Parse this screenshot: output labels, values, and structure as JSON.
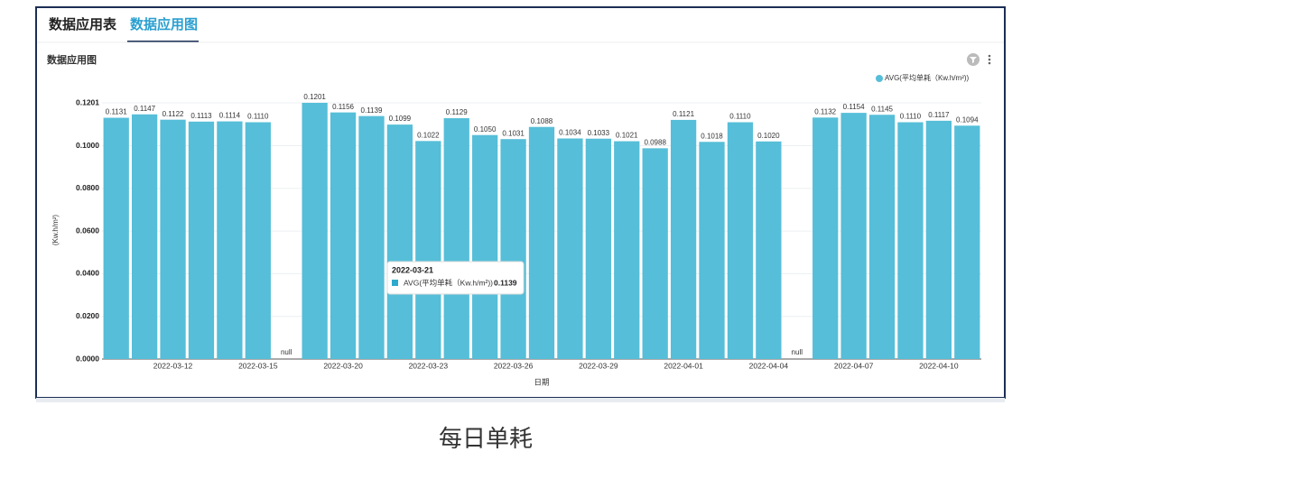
{
  "tabs": [
    "数据应用表",
    "数据应用图"
  ],
  "panel_title": "数据应用图",
  "caption": "每日单耗",
  "tooltip": {
    "title": "2022-03-21",
    "series": "AVG(平均单耗（Kw.h/m²))",
    "value": 0.1139
  },
  "chart_data": {
    "type": "bar",
    "x_label": "日期",
    "y_label": "(Kw.h/m²)",
    "categories": [
      null,
      null,
      "2022-03-12",
      null,
      null,
      "2022-03-15",
      null,
      null,
      "2022-03-20",
      null,
      null,
      "2022-03-23",
      null,
      null,
      "2022-03-26",
      null,
      null,
      "2022-03-29",
      null,
      null,
      "2022-04-01",
      null,
      null,
      "2022-04-04",
      null,
      null,
      "2022-04-07",
      null,
      null,
      "2022-04-10",
      null
    ],
    "series": [
      {
        "name": "AVG(平均单耗（Kw.h/m²))",
        "color": "#56bed8",
        "values": [
          0.1131,
          0.1147,
          0.1122,
          0.1113,
          0.1114,
          0.111,
          null,
          0.1201,
          0.1156,
          0.1139,
          0.1099,
          0.1022,
          0.1129,
          0.105,
          0.1031,
          0.1088,
          0.1034,
          0.1033,
          0.1021,
          0.0988,
          0.1121,
          0.1018,
          0.111,
          0.102,
          null,
          0.1132,
          0.1154,
          0.1145,
          0.111,
          0.1117,
          0.1094
        ],
        "value_labels": [
          "0.1131",
          "0.1147",
          "0.1122",
          "0.1113",
          "0.1114",
          "0.1110",
          "null",
          "0.1201",
          "0.1156",
          "0.1139",
          "0.1099",
          "0.1022",
          "0.1129",
          "0.1050",
          "0.1031",
          "0.1088",
          "0.1034",
          "0.1033",
          "0.1021",
          "0.0988",
          "0.1121",
          "0.1018",
          "0.1110",
          "0.1020",
          "null",
          "0.1132",
          "0.1154",
          "0.1145",
          "0.1110",
          "0.1117",
          "0.1094"
        ]
      }
    ],
    "ylim": [
      0,
      0.1201
    ],
    "yticks": [
      {
        "value": 0,
        "label": "0.0000"
      },
      {
        "value": 0.02,
        "label": "0.0200"
      },
      {
        "value": 0.04,
        "label": "0.0400"
      },
      {
        "value": 0.06,
        "label": "0.0600"
      },
      {
        "value": 0.08,
        "label": "0.0800"
      },
      {
        "value": 0.1,
        "label": "0.1000"
      },
      {
        "value": 0.1201,
        "label": "0.1201"
      }
    ],
    "grid": true,
    "legend": "top-right"
  }
}
